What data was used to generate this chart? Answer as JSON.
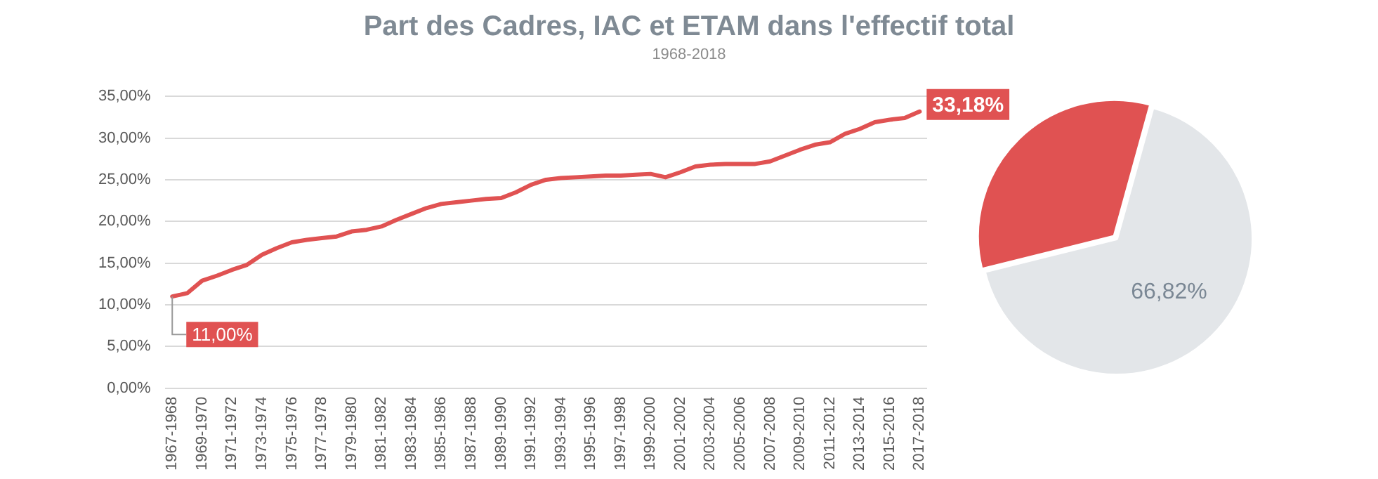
{
  "chart_data": [
    {
      "type": "line",
      "title": "Part des Cadres, IAC et ETAM dans l'effectif total",
      "subtitle": "1968-2018",
      "categories": [
        "1967-1968",
        null,
        "1969-1970",
        null,
        "1971-1972",
        null,
        "1973-1974",
        null,
        "1975-1976",
        null,
        "1977-1978",
        null,
        "1979-1980",
        null,
        "1981-1982",
        null,
        "1983-1984",
        null,
        "1985-1986",
        null,
        "1987-1988",
        null,
        "1989-1990",
        null,
        "1991-1992",
        null,
        "1993-1994",
        null,
        "1995-1996",
        null,
        "1997-1998",
        null,
        "1999-2000",
        null,
        "2001-2002",
        null,
        "2003-2004",
        null,
        "2005-2006",
        null,
        "2007-2008",
        null,
        "2009-2010",
        null,
        "2011-2012",
        null,
        "2013-2014",
        null,
        "2015-2016",
        null,
        "2017-2018"
      ],
      "series": [
        {
          "color": "#e05252",
          "values": [
            11.0,
            11.4,
            12.9,
            13.5,
            14.2,
            14.8,
            16.0,
            16.8,
            17.5,
            17.8,
            18.0,
            18.2,
            18.8,
            19.0,
            19.4,
            20.2,
            20.9,
            21.6,
            22.1,
            22.3,
            22.5,
            22.7,
            22.8,
            23.5,
            24.4,
            25.0,
            25.2,
            25.3,
            25.4,
            25.5,
            25.5,
            25.6,
            25.7,
            25.3,
            25.9,
            26.6,
            26.8,
            26.9,
            26.9,
            26.9,
            27.2,
            27.9,
            28.6,
            29.2,
            29.5,
            30.5,
            31.1,
            31.9,
            32.2,
            32.4,
            33.18
          ],
          "value_labels": [
            "11,00%",
            null,
            null,
            null,
            null,
            null,
            null,
            null,
            null,
            null,
            null,
            null,
            null,
            null,
            null,
            null,
            null,
            null,
            null,
            null,
            null,
            null,
            null,
            null,
            null,
            null,
            null,
            null,
            null,
            null,
            null,
            null,
            null,
            null,
            null,
            null,
            null,
            null,
            null,
            null,
            null,
            null,
            null,
            null,
            null,
            null,
            null,
            null,
            null,
            null,
            "33,18%"
          ]
        }
      ],
      "ylim": [
        0,
        35
      ],
      "yticks": [
        {
          "value": 0,
          "label": "0,00%"
        },
        {
          "value": 5,
          "label": "5,00%"
        },
        {
          "value": 10,
          "label": "10,00%"
        },
        {
          "value": 15,
          "label": "15,00%"
        },
        {
          "value": 20,
          "label": "20,00%"
        },
        {
          "value": 25,
          "label": "25,00%"
        },
        {
          "value": 30,
          "label": "30,00%"
        },
        {
          "value": 35,
          "label": "35,00%"
        }
      ],
      "grid": "y",
      "marker": "none",
      "line_style": "solid"
    },
    {
      "type": "pie",
      "categories": [
        null,
        null
      ],
      "values": [
        33.18,
        66.82
      ],
      "colors": [
        "#e05252",
        "#e3e6e9"
      ],
      "value_labels": [
        null,
        "66,82%"
      ]
    }
  ]
}
